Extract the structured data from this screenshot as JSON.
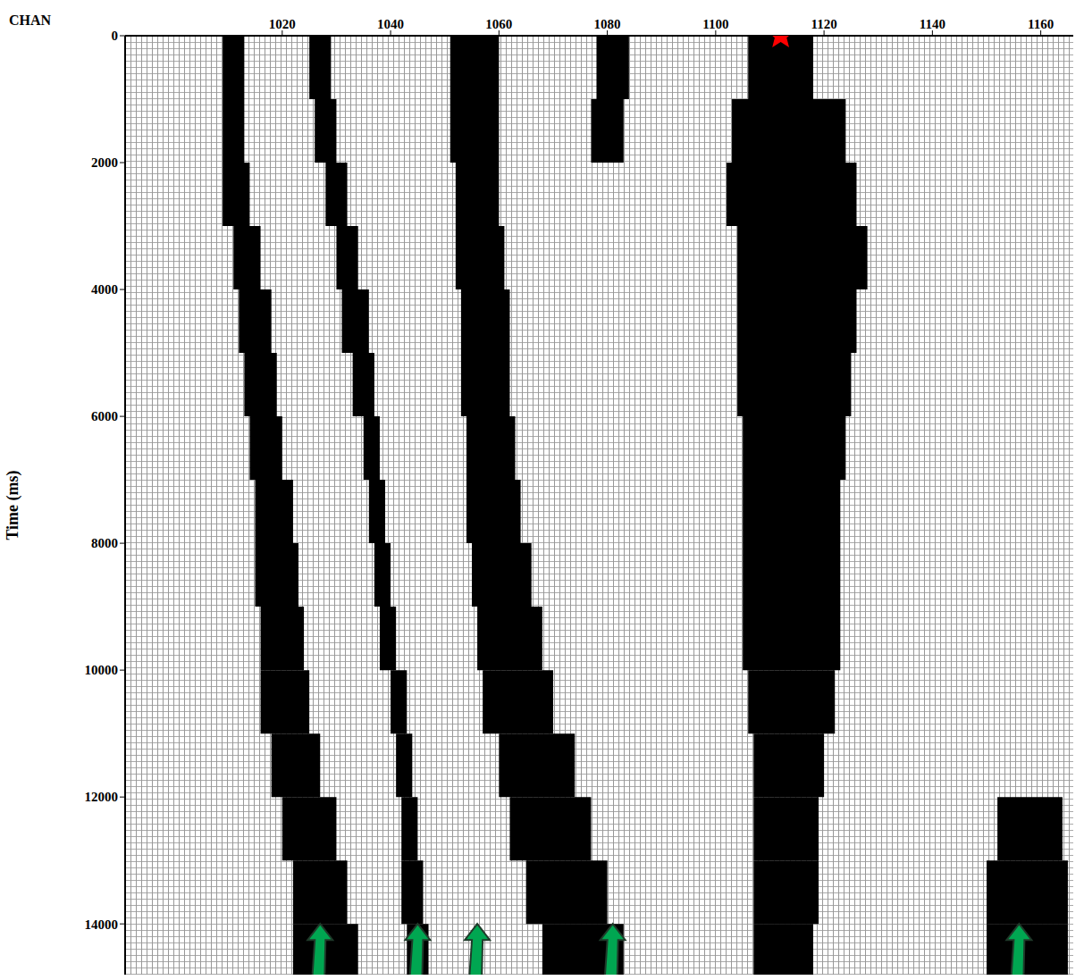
{
  "chart_data": {
    "type": "seismic",
    "x_label": "CHAN",
    "y_label": "Time (ms)",
    "xlim": [
      991,
      1166
    ],
    "xticks": [
      1020,
      1040,
      1060,
      1080,
      1100,
      1120,
      1140,
      1160
    ],
    "ylim": [
      0,
      14800
    ],
    "yticks": [
      0,
      2000,
      4000,
      6000,
      8000,
      10000,
      12000,
      14000
    ],
    "color": "#000000",
    "zones": [
      [
        [
          0,
          1000,
          1009,
          1013
        ],
        [
          1000,
          2000,
          1009,
          1013
        ],
        [
          2000,
          3000,
          1009,
          1014
        ],
        [
          3000,
          4000,
          1011,
          1016
        ],
        [
          4000,
          5000,
          1012,
          1018
        ],
        [
          5000,
          6000,
          1013,
          1019
        ],
        [
          6000,
          7000,
          1014,
          1020
        ],
        [
          7000,
          8000,
          1015,
          1022
        ],
        [
          8000,
          9000,
          1015,
          1023
        ],
        [
          9000,
          10000,
          1016,
          1024
        ],
        [
          10000,
          11000,
          1016,
          1025
        ],
        [
          11000,
          12000,
          1018,
          1027
        ],
        [
          12000,
          13000,
          1020,
          1030
        ],
        [
          13000,
          14000,
          1022,
          1032
        ],
        [
          14000,
          14800,
          1022,
          1034
        ]
      ],
      [
        [
          0,
          1000,
          1025,
          1029
        ],
        [
          1000,
          2000,
          1026,
          1030
        ],
        [
          2000,
          3000,
          1028,
          1032
        ],
        [
          3000,
          4000,
          1030,
          1034
        ],
        [
          4000,
          5000,
          1031,
          1036
        ],
        [
          5000,
          6000,
          1033,
          1037
        ],
        [
          6000,
          7000,
          1035,
          1038
        ],
        [
          7000,
          8000,
          1036,
          1039
        ],
        [
          8000,
          9000,
          1037,
          1040
        ],
        [
          9000,
          10000,
          1038,
          1041
        ],
        [
          10000,
          11000,
          1040,
          1043
        ],
        [
          11000,
          12000,
          1041,
          1044
        ],
        [
          12000,
          13000,
          1042,
          1045
        ],
        [
          13000,
          14000,
          1042,
          1046
        ],
        [
          14000,
          14800,
          1043,
          1047
        ]
      ],
      [
        [
          0,
          1000,
          1051,
          1060
        ],
        [
          1000,
          2000,
          1051,
          1060
        ],
        [
          2000,
          3000,
          1052,
          1060
        ],
        [
          3000,
          4000,
          1052,
          1061
        ],
        [
          4000,
          5000,
          1053,
          1062
        ],
        [
          5000,
          6000,
          1053,
          1062
        ],
        [
          6000,
          7000,
          1054,
          1063
        ],
        [
          7000,
          8000,
          1054,
          1064
        ],
        [
          8000,
          9000,
          1055,
          1066
        ],
        [
          9000,
          10000,
          1056,
          1068
        ],
        [
          10000,
          11000,
          1057,
          1070
        ],
        [
          11000,
          12000,
          1060,
          1074
        ],
        [
          12000,
          13000,
          1062,
          1077
        ],
        [
          13000,
          14000,
          1065,
          1080
        ],
        [
          14000,
          14800,
          1068,
          1083
        ]
      ],
      [
        [
          0,
          1000,
          1078,
          1084
        ],
        [
          1000,
          2000,
          1077,
          1083
        ]
      ],
      [
        [
          0,
          1000,
          1106,
          1118
        ],
        [
          1000,
          2000,
          1103,
          1124
        ],
        [
          2000,
          3000,
          1102,
          1126
        ],
        [
          3000,
          4000,
          1104,
          1128
        ],
        [
          4000,
          5000,
          1104,
          1126
        ],
        [
          5000,
          6000,
          1104,
          1125
        ],
        [
          6000,
          7000,
          1105,
          1124
        ],
        [
          7000,
          8000,
          1105,
          1123
        ],
        [
          8000,
          9000,
          1105,
          1123
        ],
        [
          9000,
          10000,
          1105,
          1123
        ],
        [
          10000,
          11000,
          1106,
          1122
        ],
        [
          11000,
          12000,
          1107,
          1120
        ],
        [
          12000,
          13000,
          1107,
          1119
        ],
        [
          13000,
          14000,
          1107,
          1119
        ],
        [
          14000,
          14800,
          1107,
          1118
        ]
      ],
      [
        [
          12000,
          13000,
          1152,
          1164
        ],
        [
          13000,
          14000,
          1150,
          1165
        ],
        [
          14000,
          14800,
          1150,
          1165
        ]
      ]
    ],
    "source": {
      "channel": 1112,
      "time": 0,
      "color": "#ff0000",
      "marker": "star"
    },
    "arrows": {
      "channels": [
        1027,
        1045,
        1056,
        1081,
        1156
      ],
      "time": 14000,
      "color": "#00a651",
      "marker": "arrow"
    }
  }
}
